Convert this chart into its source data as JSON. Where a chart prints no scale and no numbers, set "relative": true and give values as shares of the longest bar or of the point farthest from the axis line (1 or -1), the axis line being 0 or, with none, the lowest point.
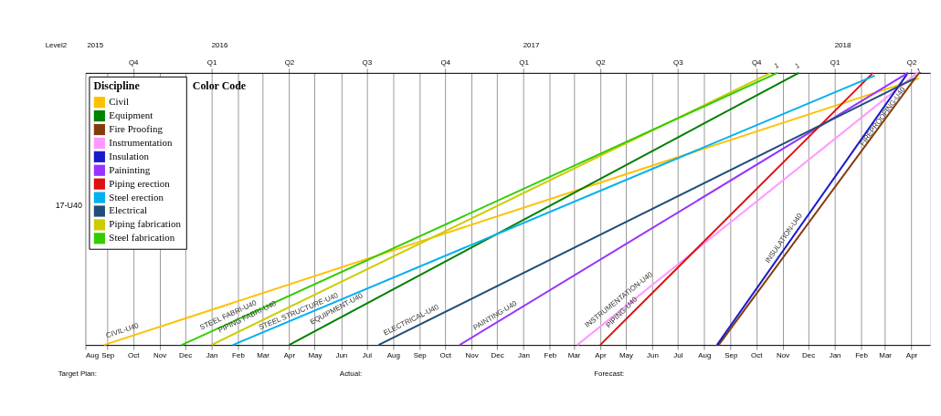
{
  "chart_data": {
    "type": "line",
    "relative": true,
    "ylabel": "17-U40",
    "legend_title": "Discipline",
    "legend": "top left",
    "grid": "x",
    "line_style": "solid",
    "marker": "none",
    "xlim": [
      "2015-08-06",
      "2018-04-23"
    ],
    "xticks": [
      {
        "value": "2015-08-06",
        "label": "Aug"
      },
      {
        "value": "2015-09-01",
        "label": "Sep"
      },
      {
        "value": "2015-10-01",
        "label": "Oct"
      },
      {
        "value": "2015-11-01",
        "label": "Nov"
      },
      {
        "value": "2015-12-01",
        "label": "Dec"
      },
      {
        "value": "2016-01-01",
        "label": "Jan"
      },
      {
        "value": "2016-02-01",
        "label": "Feb"
      },
      {
        "value": "2016-03-01",
        "label": "Mar"
      },
      {
        "value": "2016-04-01",
        "label": "Apr"
      },
      {
        "value": "2016-05-01",
        "label": "May"
      },
      {
        "value": "2016-06-01",
        "label": "Jun"
      },
      {
        "value": "2016-07-01",
        "label": "Jul"
      },
      {
        "value": "2016-08-01",
        "label": "Aug"
      },
      {
        "value": "2016-09-01",
        "label": "Sep"
      },
      {
        "value": "2016-10-01",
        "label": "Oct"
      },
      {
        "value": "2016-11-01",
        "label": "Nov"
      },
      {
        "value": "2016-12-01",
        "label": "Dec"
      },
      {
        "value": "2017-01-01",
        "label": "Jan"
      },
      {
        "value": "2017-02-01",
        "label": "Feb"
      },
      {
        "value": "2017-03-01",
        "label": "Mar"
      },
      {
        "value": "2017-04-01",
        "label": "Apr"
      },
      {
        "value": "2017-05-01",
        "label": "May"
      },
      {
        "value": "2017-06-01",
        "label": "Jun"
      },
      {
        "value": "2017-07-01",
        "label": "Jul"
      },
      {
        "value": "2017-08-01",
        "label": "Aug"
      },
      {
        "value": "2017-09-01",
        "label": "Sep"
      },
      {
        "value": "2017-10-01",
        "label": "Oct"
      },
      {
        "value": "2017-11-01",
        "label": "Nov"
      },
      {
        "value": "2017-12-01",
        "label": "Dec"
      },
      {
        "value": "2018-01-01",
        "label": "Jan"
      },
      {
        "value": "2018-02-01",
        "label": "Feb"
      },
      {
        "value": "2018-03-01",
        "label": "Mar"
      },
      {
        "value": "2018-04-01",
        "label": "Apr"
      }
    ],
    "x2lim": [
      "2015-08-06",
      "2018-04-23"
    ],
    "x2ticks": [
      {
        "value": "2015-10-01",
        "label": "Q4"
      },
      {
        "value": "2016-01-01",
        "label": "Q1"
      },
      {
        "value": "2016-04-01",
        "label": "Q2"
      },
      {
        "value": "2016-07-01",
        "label": "Q3"
      },
      {
        "value": "2016-10-01",
        "label": "Q4"
      },
      {
        "value": "2017-01-01",
        "label": "Q1"
      },
      {
        "value": "2017-04-01",
        "label": "Q2"
      },
      {
        "value": "2017-07-01",
        "label": "Q3"
      },
      {
        "value": "2017-10-01",
        "label": "Q4"
      },
      {
        "value": "2018-01-01",
        "label": "Q1"
      },
      {
        "value": "2018-04-01",
        "label": "Q2"
      }
    ],
    "series": [
      {
        "name": "Civil",
        "color": "#ffc000",
        "x": [
          "2015-08-28",
          "2018-04-10"
        ],
        "values": [
          0,
          0.98
        ]
      },
      {
        "name": "Equipment",
        "color": "#008000",
        "x": [
          "2016-04-01",
          "2017-11-20"
        ],
        "values": [
          0,
          1
        ]
      },
      {
        "name": "Fire Proofing",
        "color": "#843c0c",
        "x": [
          "2017-08-18",
          "2018-04-10"
        ],
        "values": [
          0,
          1
        ]
      },
      {
        "name": "Instrumentation",
        "color": "#ff99ff",
        "x": [
          "2017-03-05",
          "2018-04-08"
        ],
        "values": [
          0,
          1
        ]
      },
      {
        "name": "Insulation",
        "color": "#1a1acc",
        "x": [
          "2017-08-16",
          "2018-03-28"
        ],
        "values": [
          0,
          1
        ]
      },
      {
        "name": "Paininting",
        "color": "#9933ff",
        "x": [
          "2016-10-18",
          "2018-03-28"
        ],
        "values": [
          0,
          1
        ]
      },
      {
        "name": "Piping erection",
        "color": "#e01010",
        "x": [
          "2017-04-01",
          "2018-02-15"
        ],
        "values": [
          0,
          1
        ]
      },
      {
        "name": "Steel erection",
        "color": "#00b0f0",
        "x": [
          "2016-01-26",
          "2018-02-17"
        ],
        "values": [
          0,
          0.99
        ]
      },
      {
        "name": "Electrical",
        "color": "#1f4e79",
        "x": [
          "2016-07-15",
          "2018-04-05"
        ],
        "values": [
          0,
          0.98
        ]
      },
      {
        "name": "Piping fabrication",
        "color": "#cccc00",
        "x": [
          "2016-01-01",
          "2017-10-18"
        ],
        "values": [
          0,
          1
        ]
      },
      {
        "name": "Steel fabrication",
        "color": "#33cc00",
        "x": [
          "2015-11-27",
          "2017-10-26"
        ],
        "values": [
          0,
          1
        ]
      }
    ],
    "annotations": [
      "Level2",
      "Color Code",
      "Target Plan:",
      "Actual:",
      "Forecast:",
      "2015",
      "2016",
      "2017",
      "2018",
      {
        "text": "CIVIL-U40",
        "x": "2015-09-02",
        "y": 0.01
      },
      {
        "text": "STEEL FABRI-U40",
        "x": "2015-12-22",
        "y": 0.04
      },
      {
        "text": "PIPING FABRI-U40",
        "x": "2016-01-13",
        "y": 0.03
      },
      {
        "text": "STEEL STRUCTURE-U40",
        "x": "2016-02-29",
        "y": 0.04
      },
      {
        "text": "EQUIPMENT-U40",
        "x": "2016-04-30",
        "y": 0.06
      },
      {
        "text": "ELECTRICAL-U40",
        "x": "2016-07-25",
        "y": 0.02
      },
      {
        "text": "PAINTING-U40",
        "x": "2016-11-08",
        "y": 0.04
      },
      {
        "text": "INSTRUMENTATION-U40",
        "x": "2017-03-20",
        "y": 0.05
      },
      {
        "text": "PIPING-U40",
        "x": "2017-04-15",
        "y": 0.05
      },
      {
        "text": "INSULATION-U40",
        "x": "2017-10-20",
        "y": 0.29
      },
      {
        "text": "FIREPROOFING-U40",
        "x": "2018-02-08",
        "y": 0.72
      },
      {
        "text": "1",
        "x": "2017-10-26",
        "y": 1
      },
      {
        "text": "1",
        "x": "2017-11-20",
        "y": 1
      },
      {
        "text": "1",
        "x": "2018-04-10",
        "y": 0.98
      }
    ]
  }
}
